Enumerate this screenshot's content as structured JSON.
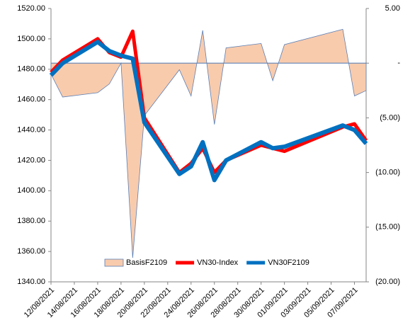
{
  "chart_data": {
    "type": "combo",
    "x": [
      "12/08/2021",
      "13/08/2021",
      "16/08/2021",
      "17/08/2021",
      "18/08/2021",
      "19/08/2021",
      "20/08/2021",
      "23/08/2021",
      "24/08/2021",
      "25/08/2021",
      "26/08/2021",
      "27/08/2021",
      "30/08/2021",
      "31/08/2021",
      "01/09/2021",
      "06/09/2021",
      "07/09/2021",
      "08/09/2021"
    ],
    "xlim": [
      "12/08/2021",
      "08/09/2021"
    ],
    "xticks": [
      "12/08/2021",
      "14/08/2021",
      "16/08/2021",
      "18/08/2021",
      "20/08/2021",
      "22/08/2021",
      "24/08/2021",
      "26/08/2021",
      "28/08/2021",
      "30/08/2021",
      "01/09/2021",
      "03/09/2021",
      "05/09/2021",
      "07/09/2021"
    ],
    "ylim": [
      1340,
      1520
    ],
    "yticks": [
      {
        "value": 1340,
        "label": "1340.00"
      },
      {
        "value": 1360,
        "label": "1360.00"
      },
      {
        "value": 1380,
        "label": "1380.00"
      },
      {
        "value": 1400,
        "label": "1400.00"
      },
      {
        "value": 1420,
        "label": "1420.00"
      },
      {
        "value": 1440,
        "label": "1440.00"
      },
      {
        "value": 1460,
        "label": "1460.00"
      },
      {
        "value": 1480,
        "label": "1480.00"
      },
      {
        "value": 1500,
        "label": "1500.00"
      },
      {
        "value": 1520,
        "label": "1520.00"
      }
    ],
    "y2lim": [
      -20,
      5
    ],
    "y2ticks": [
      {
        "value": -20,
        "label": "(20.00)"
      },
      {
        "value": -15,
        "label": "(15.00)"
      },
      {
        "value": -10,
        "label": "(10.00)"
      },
      {
        "value": -5,
        "label": "(5.00)"
      },
      {
        "value": 0,
        "label": "-"
      },
      {
        "value": 5,
        "label": "5.00"
      }
    ],
    "series": [
      {
        "name": "BasisF2109",
        "type": "area",
        "axis": "y2",
        "color": "#f8cbad",
        "values": [
          -1,
          -3.1,
          -2.7,
          -1.9,
          0,
          -17.8,
          -4.8,
          -0.6,
          -3,
          3,
          -5.6,
          1.4,
          1.8,
          -1.6,
          1.7,
          3.1,
          -3,
          -2.5
        ]
      },
      {
        "name": "VN30-Index",
        "type": "line",
        "color": "#ff0000",
        "values": [
          1478,
          1486,
          1500,
          1491,
          1488,
          1505,
          1448,
          1412,
          1418,
          1428,
          1412,
          1420,
          1430,
          1428,
          1426,
          1442,
          1444,
          1433
        ]
      },
      {
        "name": "VN30F2109",
        "type": "line",
        "color": "#0070c0",
        "values": [
          1476,
          1484,
          1498,
          1492,
          1489,
          1487,
          1445,
          1411,
          1416,
          1432,
          1407,
          1420,
          1432,
          1428,
          1429,
          1443,
          1440,
          1431
        ]
      }
    ]
  }
}
